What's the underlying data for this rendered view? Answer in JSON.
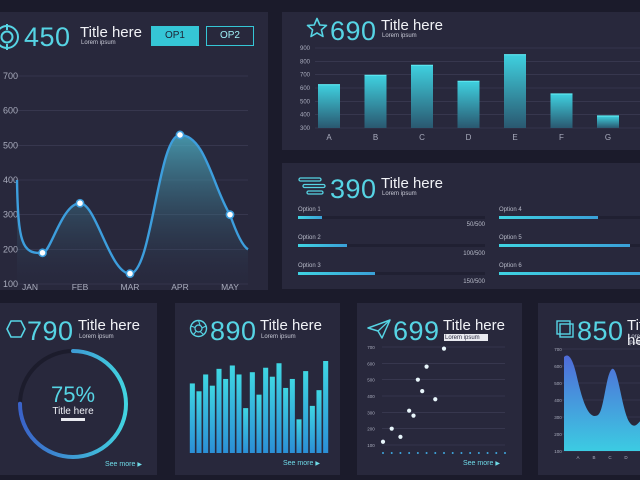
{
  "colors": {
    "accent": "#56d4e4",
    "panel": "#28283c",
    "background": "#1b1b2b"
  },
  "panel_line": {
    "value": "450",
    "title": "Title here",
    "subtitle": "Lorem ipsum",
    "icon": "target-icon",
    "buttons": [
      {
        "label": "OP1"
      },
      {
        "label": "OP2"
      }
    ],
    "chart_data": {
      "type": "area",
      "categories": [
        "JAN",
        "FEB",
        "MAR",
        "APR",
        "MAY"
      ],
      "yticks": [
        "100",
        "200",
        "300",
        "400",
        "500",
        "600",
        "700"
      ],
      "ylim": [
        100,
        700
      ],
      "points": [
        [
          0.25,
          190
        ],
        [
          1,
          333
        ],
        [
          2,
          130
        ],
        [
          3,
          530
        ],
        [
          4,
          300
        ]
      ]
    }
  },
  "panel_bar": {
    "value": "690",
    "title": "Title here",
    "subtitle": "Lorem ipsum",
    "icon": "star-icon",
    "chart_data": {
      "type": "bar",
      "categories": [
        "A",
        "B",
        "C",
        "D",
        "E",
        "F",
        "G"
      ],
      "values": [
        625,
        695,
        770,
        650,
        850,
        555,
        390
      ],
      "yticks": [
        "300",
        "400",
        "500",
        "600",
        "700",
        "800",
        "900"
      ],
      "ylim": [
        300,
        900
      ]
    }
  },
  "panel_options": {
    "value": "390",
    "title": "Title here",
    "subtitle": "Lorem ipsum",
    "icon": "lines-icon",
    "options": [
      {
        "label": "Option 1",
        "value": "50/500",
        "fill": 0.13
      },
      {
        "label": "Option 2",
        "value": "100/500",
        "fill": 0.26
      },
      {
        "label": "Option 3",
        "value": "150/500",
        "fill": 0.41
      },
      {
        "label": "Option 4",
        "value": "",
        "fill": 0.66
      },
      {
        "label": "Option 5",
        "value": "",
        "fill": 0.87
      },
      {
        "label": "Option 6",
        "value": "",
        "fill": 0.97
      }
    ]
  },
  "panel_ring": {
    "value": "790",
    "title": "Title here",
    "subtitle": "Lorem ipsum",
    "icon": "hexagon-icon",
    "percent_text": "75%",
    "percent": 0.75,
    "ring_title": "Title here",
    "see_more": "See more"
  },
  "panel_histogram": {
    "value": "890",
    "title": "Title here",
    "subtitle": "Lorem ipsum",
    "icon": "aperture-icon",
    "see_more": "See more",
    "chart_data": {
      "type": "bar",
      "values": [
        0.62,
        0.55,
        0.7,
        0.6,
        0.75,
        0.66,
        0.78,
        0.7,
        0.4,
        0.72,
        0.52,
        0.76,
        0.68,
        0.8,
        0.58,
        0.66,
        0.3,
        0.73,
        0.42,
        0.56,
        0.82
      ]
    }
  },
  "panel_scatter": {
    "value": "699",
    "title": "Title here",
    "subtitle": "Lorem ipsum",
    "icon": "paper-plane-icon",
    "see_more": "See more",
    "chart_data": {
      "type": "scatter",
      "yticks": [
        "700",
        "600",
        "500",
        "400",
        "300",
        "200",
        "100"
      ],
      "ylim": [
        100,
        700
      ],
      "xlim": [
        0,
        14
      ],
      "points": [
        [
          0,
          120
        ],
        [
          1,
          200
        ],
        [
          2,
          150
        ],
        [
          3,
          310
        ],
        [
          3.5,
          280
        ],
        [
          4,
          500
        ],
        [
          4.5,
          430
        ],
        [
          5,
          580
        ],
        [
          6,
          380
        ],
        [
          7,
          690
        ]
      ]
    }
  },
  "panel_area": {
    "value": "850",
    "title": "Title here",
    "subtitle": "Lorem ipsum",
    "icon": "squares-icon",
    "chart_data": {
      "type": "area",
      "categories": [
        "A",
        "B",
        "C",
        "D"
      ],
      "yticks": [
        "700",
        "600",
        "500",
        "400",
        "300",
        "200",
        "100"
      ]
    }
  }
}
